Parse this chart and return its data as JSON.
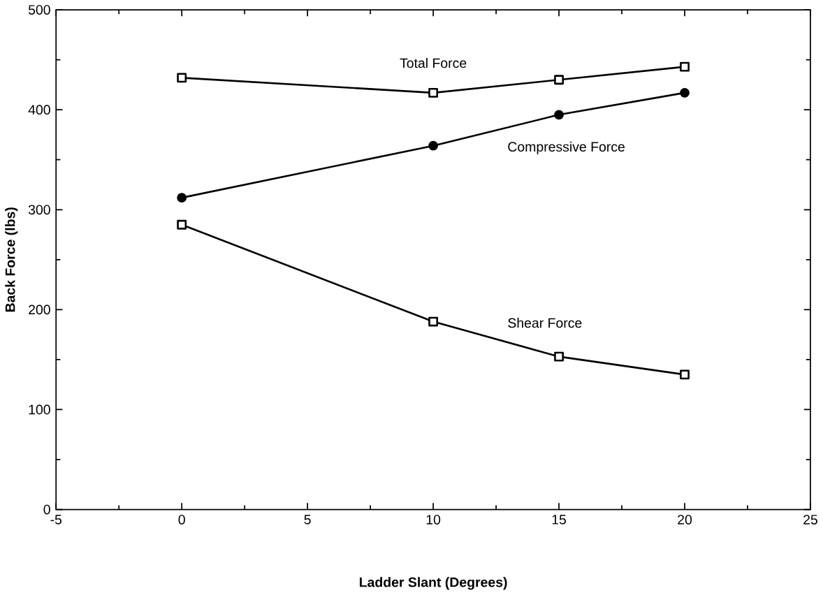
{
  "chart_data": {
    "type": "line",
    "xlabel": "Ladder Slant (Degrees)",
    "ylabel": "Back Force (lbs)",
    "xlim": [
      -5,
      25
    ],
    "xticks": [
      -5,
      0,
      5,
      10,
      15,
      20,
      25
    ],
    "ylim": [
      0,
      500
    ],
    "yticks": [
      0,
      100,
      200,
      300,
      400,
      500
    ],
    "series": [
      {
        "name": "Total Force",
        "color": "#000000",
        "marker": "square",
        "x": [
          0,
          10,
          15,
          20
        ],
        "values": [
          432,
          417,
          430,
          443
        ]
      },
      {
        "name": "Compressive Force",
        "color": "#000000",
        "marker": "circle",
        "x": [
          0,
          10,
          15,
          20
        ],
        "values": [
          312,
          364,
          395,
          417
        ]
      },
      {
        "name": "Shear Force",
        "color": "#000000",
        "marker": "square",
        "x": [
          0,
          10,
          15,
          20
        ],
        "values": [
          285,
          188,
          153,
          135
        ]
      }
    ],
    "legend": false,
    "grid": false
  }
}
